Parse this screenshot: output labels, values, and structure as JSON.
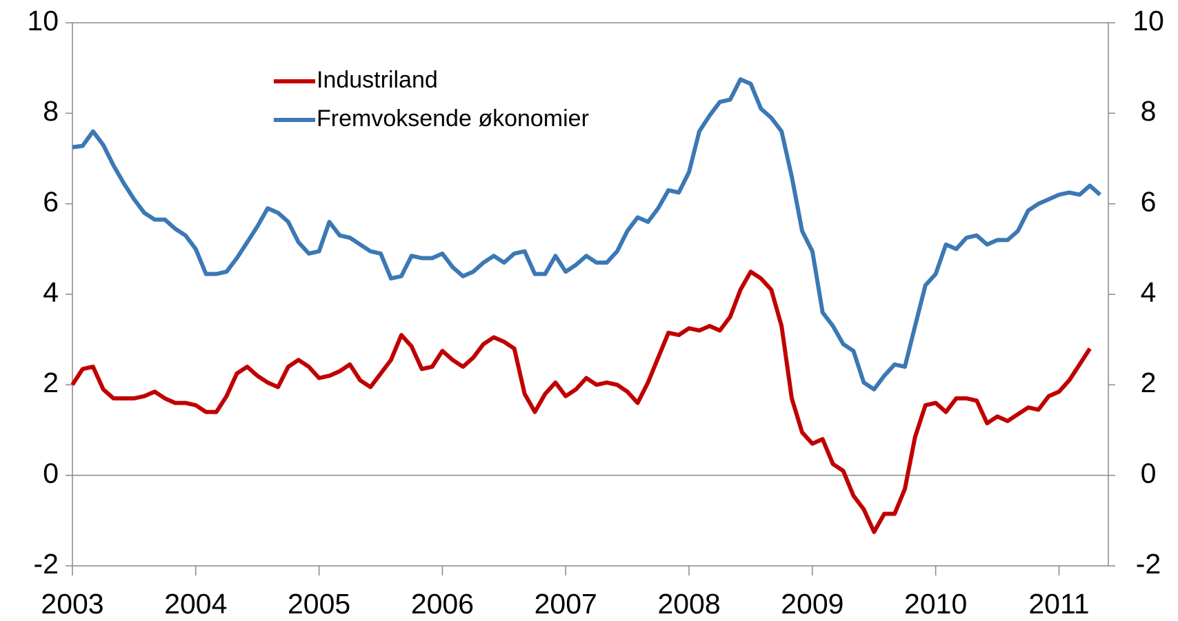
{
  "chart_data": {
    "type": "line",
    "x": [
      2003,
      2003.083,
      2003.167,
      2003.25,
      2003.333,
      2003.417,
      2003.5,
      2003.583,
      2003.667,
      2003.75,
      2003.833,
      2003.917,
      2004,
      2004.083,
      2004.167,
      2004.25,
      2004.333,
      2004.417,
      2004.5,
      2004.583,
      2004.667,
      2004.75,
      2004.833,
      2004.917,
      2005,
      2005.083,
      2005.167,
      2005.25,
      2005.333,
      2005.417,
      2005.5,
      2005.583,
      2005.667,
      2005.75,
      2005.833,
      2005.917,
      2006,
      2006.083,
      2006.167,
      2006.25,
      2006.333,
      2006.417,
      2006.5,
      2006.583,
      2006.667,
      2006.75,
      2006.833,
      2006.917,
      2007,
      2007.083,
      2007.167,
      2007.25,
      2007.333,
      2007.417,
      2007.5,
      2007.583,
      2007.667,
      2007.75,
      2007.833,
      2007.917,
      2008,
      2008.083,
      2008.167,
      2008.25,
      2008.333,
      2008.417,
      2008.5,
      2008.583,
      2008.667,
      2008.75,
      2008.833,
      2008.917,
      2009,
      2009.083,
      2009.167,
      2009.25,
      2009.333,
      2009.417,
      2009.5,
      2009.583,
      2009.667,
      2009.75,
      2009.833,
      2009.917,
      2010,
      2010.083,
      2010.167,
      2010.25,
      2010.333,
      2010.417,
      2010.5,
      2010.583,
      2010.667,
      2010.75,
      2010.833,
      2010.917,
      2011,
      2011.083,
      2011.167,
      2011.25,
      2011.333
    ],
    "series": [
      {
        "name": "Industriland",
        "color": "#c00000",
        "values": [
          2.0,
          2.35,
          2.4,
          1.9,
          1.7,
          1.7,
          1.7,
          1.75,
          1.85,
          1.7,
          1.6,
          1.6,
          1.55,
          1.4,
          1.4,
          1.75,
          2.25,
          2.4,
          2.2,
          2.05,
          1.95,
          2.4,
          2.55,
          2.4,
          2.15,
          2.2,
          2.3,
          2.45,
          2.1,
          1.95,
          2.25,
          2.55,
          3.1,
          2.85,
          2.35,
          2.4,
          2.75,
          2.55,
          2.4,
          2.6,
          2.9,
          3.05,
          2.95,
          2.8,
          1.8,
          1.4,
          1.8,
          2.05,
          1.75,
          1.9,
          2.15,
          2.0,
          2.05,
          2.0,
          1.85,
          1.6,
          2.05,
          2.6,
          3.15,
          3.1,
          3.25,
          3.2,
          3.3,
          3.2,
          3.5,
          4.1,
          4.5,
          4.35,
          4.1,
          3.3,
          1.7,
          0.95,
          0.7,
          0.8,
          0.25,
          0.1,
          -0.45,
          -0.75,
          -1.25,
          -0.85,
          -0.85,
          -0.3,
          0.85,
          1.55,
          1.6,
          1.4,
          1.7,
          1.7,
          1.65,
          1.15,
          1.3,
          1.2,
          1.35,
          1.5,
          1.45,
          1.75,
          1.85,
          2.1,
          2.45,
          2.8,
          null
        ]
      },
      {
        "name": "Fremvoksende økonomier",
        "color": "#3b78b4",
        "values": [
          7.25,
          7.28,
          7.6,
          7.3,
          6.85,
          6.45,
          6.1,
          5.8,
          5.65,
          5.65,
          5.45,
          5.3,
          5.0,
          4.45,
          4.45,
          4.5,
          4.8,
          5.15,
          5.5,
          5.9,
          5.8,
          5.6,
          5.15,
          4.9,
          4.95,
          5.6,
          5.3,
          5.25,
          5.1,
          4.95,
          4.9,
          4.35,
          4.4,
          4.85,
          4.8,
          4.8,
          4.9,
          4.6,
          4.4,
          4.5,
          4.7,
          4.85,
          4.7,
          4.9,
          4.95,
          4.45,
          4.45,
          4.85,
          4.5,
          4.65,
          4.85,
          4.7,
          4.7,
          4.95,
          5.4,
          5.7,
          5.6,
          5.9,
          6.3,
          6.25,
          6.7,
          7.6,
          7.95,
          8.25,
          8.3,
          8.75,
          8.65,
          8.1,
          7.9,
          7.6,
          6.6,
          5.4,
          4.95,
          3.6,
          3.3,
          2.9,
          2.75,
          2.05,
          1.9,
          2.2,
          2.45,
          2.4,
          3.3,
          4.2,
          4.45,
          5.1,
          5.0,
          5.25,
          5.3,
          5.1,
          5.2,
          5.2,
          5.4,
          5.85,
          6.0,
          6.1,
          6.2,
          6.25,
          6.2,
          6.4,
          6.2
        ]
      }
    ],
    "xlim": [
      2003,
      2011.4
    ],
    "xticks": [
      2003,
      2004,
      2005,
      2006,
      2007,
      2008,
      2009,
      2010,
      2011
    ],
    "ylim": [
      -2,
      10
    ],
    "yticks": [
      -2,
      0,
      2,
      4,
      6,
      8,
      10
    ],
    "y2lim": [
      -2,
      10
    ],
    "y2ticks": [
      -2,
      0,
      2,
      4,
      6,
      8,
      10
    ],
    "legend": "upper left",
    "grid": false
  }
}
